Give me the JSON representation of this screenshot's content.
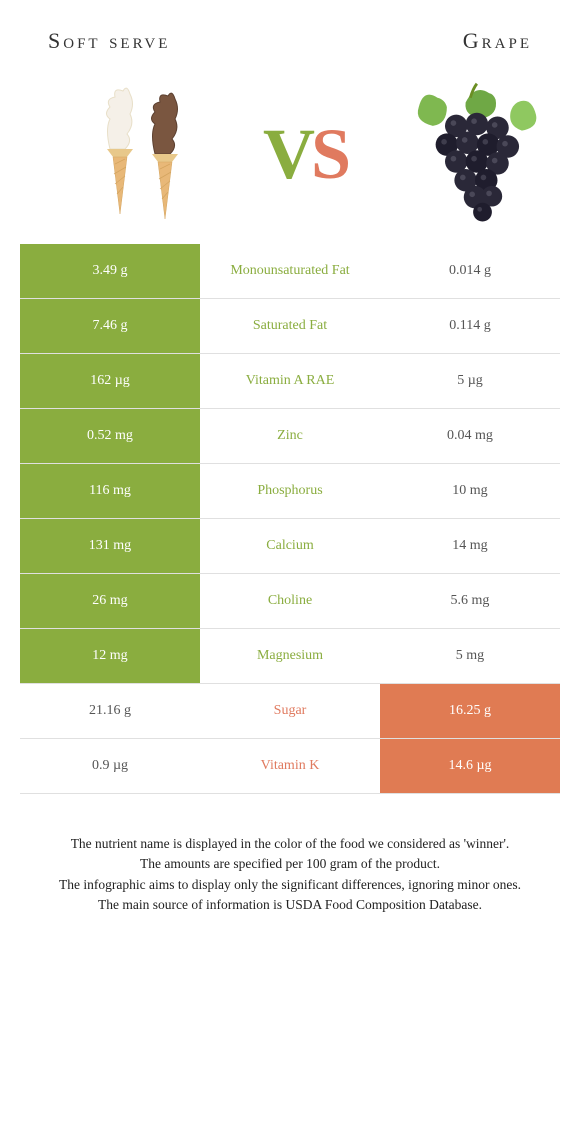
{
  "header": {
    "left_title": "Soft serve",
    "right_title": "Grape"
  },
  "vs": {
    "v": "V",
    "s": "S"
  },
  "colors": {
    "green": "#8aad3f",
    "orange": "#e07b53",
    "mid_green_text": "#8aad3f",
    "mid_orange_text": "#e07a5f",
    "row_border": "#e0e0e0"
  },
  "rows": [
    {
      "left": "3.49 g",
      "mid": "Monounsaturated Fat",
      "right": "0.014 g",
      "winner": "left"
    },
    {
      "left": "7.46 g",
      "mid": "Saturated Fat",
      "right": "0.114 g",
      "winner": "left"
    },
    {
      "left": "162 µg",
      "mid": "Vitamin A RAE",
      "right": "5 µg",
      "winner": "left"
    },
    {
      "left": "0.52 mg",
      "mid": "Zinc",
      "right": "0.04 mg",
      "winner": "left"
    },
    {
      "left": "116 mg",
      "mid": "Phosphorus",
      "right": "10 mg",
      "winner": "left"
    },
    {
      "left": "131 mg",
      "mid": "Calcium",
      "right": "14 mg",
      "winner": "left"
    },
    {
      "left": "26 mg",
      "mid": "Choline",
      "right": "5.6 mg",
      "winner": "left"
    },
    {
      "left": "12 mg",
      "mid": "Magnesium",
      "right": "5 mg",
      "winner": "left"
    },
    {
      "left": "21.16 g",
      "mid": "Sugar",
      "right": "16.25 g",
      "winner": "right"
    },
    {
      "left": "0.9 µg",
      "mid": "Vitamin K",
      "right": "14.6 µg",
      "winner": "right"
    }
  ],
  "footer": {
    "line1": "The nutrient name is displayed in the color of the food we considered as 'winner'.",
    "line2": "The amounts are specified per 100 gram of the product.",
    "line3": "The infographic aims to display only the significant differences, ignoring minor ones.",
    "line4": "The main source of information is USDA Food Composition Database."
  }
}
